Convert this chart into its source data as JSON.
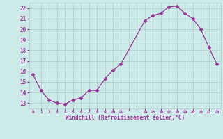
{
  "x": [
    0,
    1,
    2,
    3,
    4,
    5,
    6,
    7,
    8,
    9,
    10,
    11,
    14,
    15,
    16,
    17,
    18,
    19,
    20,
    21,
    22,
    23
  ],
  "y": [
    15.7,
    14.2,
    13.3,
    13.0,
    12.9,
    13.3,
    13.5,
    14.2,
    14.2,
    15.3,
    16.1,
    16.7,
    20.8,
    21.3,
    21.5,
    22.1,
    22.2,
    21.5,
    21.0,
    20.0,
    18.3,
    16.7
  ],
  "line_color": "#993399",
  "marker": "D",
  "marker_size": 2.5,
  "bg_color": "#cceae7",
  "grid_color": "#aacccc",
  "axis_color": "#993399",
  "xlabel": "Windchill (Refroidissement éolien,°C)",
  "xlim": [
    -0.5,
    23.5
  ],
  "ylim": [
    12.5,
    22.5
  ],
  "yticks": [
    13,
    14,
    15,
    16,
    17,
    18,
    19,
    20,
    21,
    22
  ],
  "ytick_labels": [
    "13",
    "14",
    "15",
    "16",
    "17",
    "18",
    "19",
    "20",
    "21",
    "22"
  ],
  "xticks": [
    0,
    1,
    2,
    3,
    4,
    5,
    6,
    7,
    8,
    9,
    10,
    11,
    12,
    13,
    14,
    15,
    16,
    17,
    18,
    19,
    20,
    21,
    22,
    23
  ],
  "xtick_labels": [
    "0",
    "1",
    "2",
    "3",
    "4",
    "5",
    "6",
    "7",
    "8",
    "9",
    "10",
    "11",
    "",
    "",
    "14",
    "15",
    "16",
    "17",
    "18",
    "19",
    "20",
    "21",
    "22",
    "23"
  ]
}
